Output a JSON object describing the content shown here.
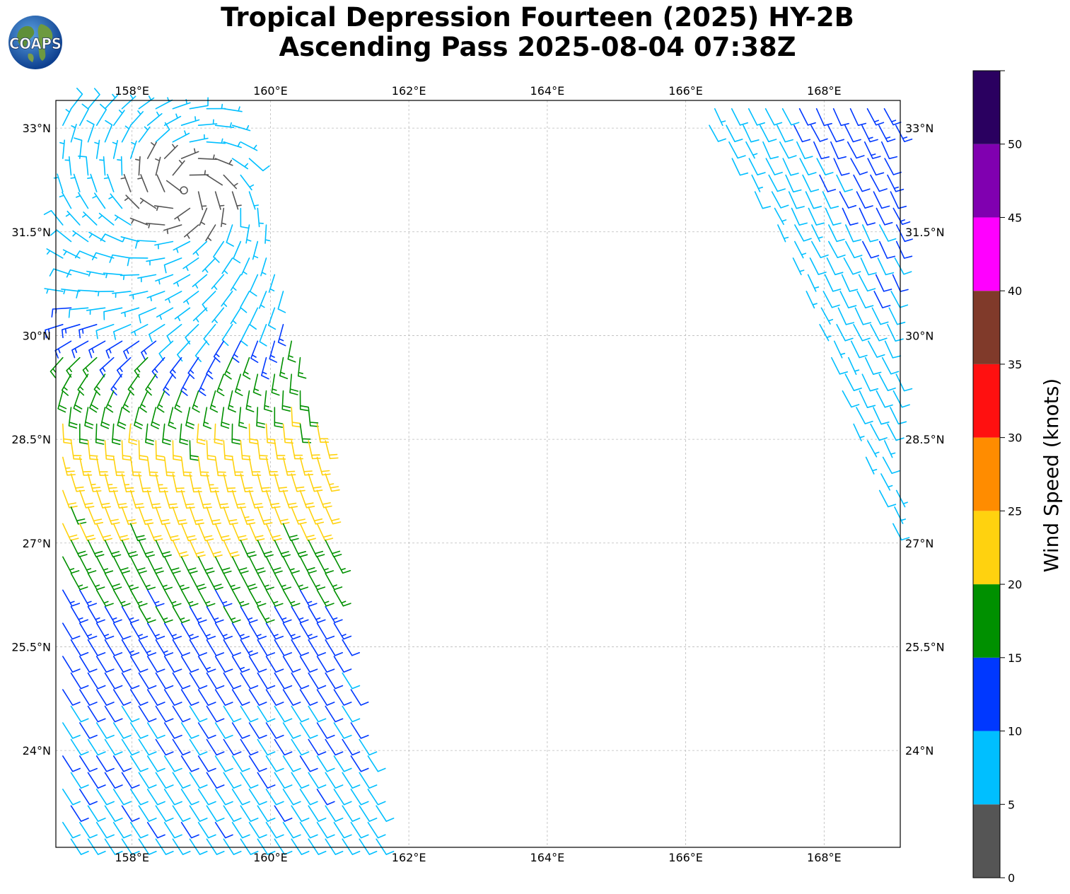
{
  "title": {
    "line1": "Tropical Depression Fourteen (2025) HY-2B",
    "line2": "Ascending Pass 2025-08-04 07:38Z"
  },
  "logo": {
    "text": "COAPS"
  },
  "map": {
    "lon_range": [
      156.9,
      169.1
    ],
    "lat_range": [
      22.6,
      33.4
    ],
    "lon_ticks": [
      {
        "value": 158,
        "label": "158°E"
      },
      {
        "value": 160,
        "label": "160°E"
      },
      {
        "value": 162,
        "label": "162°E"
      },
      {
        "value": 164,
        "label": "164°E"
      },
      {
        "value": 166,
        "label": "166°E"
      },
      {
        "value": 168,
        "label": "168°E"
      }
    ],
    "lat_ticks": [
      {
        "value": 33,
        "label": "33°N"
      },
      {
        "value": 31.5,
        "label": "31.5°N"
      },
      {
        "value": 30,
        "label": "30°N"
      },
      {
        "value": 28.5,
        "label": "28.5°N"
      },
      {
        "value": 27,
        "label": "27°N"
      },
      {
        "value": 25.5,
        "label": "25.5°N"
      },
      {
        "value": 24,
        "label": "24°N"
      }
    ],
    "grid": true,
    "storm_center": {
      "lon": 158.75,
      "lat": 32.1
    }
  },
  "colorbar": {
    "label": "Wind Speed (knots)",
    "ticks": [
      "0",
      "5",
      "10",
      "15",
      "20",
      "25",
      "30",
      "35",
      "40",
      "45",
      "50"
    ],
    "bins": [
      {
        "from": 0,
        "to": 5,
        "color": "#555555"
      },
      {
        "from": 5,
        "to": 10,
        "color": "#00bfff"
      },
      {
        "from": 10,
        "to": 15,
        "color": "#0038ff"
      },
      {
        "from": 15,
        "to": 20,
        "color": "#009000"
      },
      {
        "from": 20,
        "to": 25,
        "color": "#ffd20f"
      },
      {
        "from": 25,
        "to": 30,
        "color": "#ff8c00"
      },
      {
        "from": 30,
        "to": 35,
        "color": "#ff1010"
      },
      {
        "from": 35,
        "to": 40,
        "color": "#803a2a"
      },
      {
        "from": 40,
        "to": 45,
        "color": "#ff00ff"
      },
      {
        "from": 45,
        "to": 50,
        "color": "#8000b0"
      },
      {
        "from": 50,
        "to": 55,
        "color": "#2a0060"
      }
    ]
  },
  "swaths": [
    {
      "name": "west",
      "lat_range": [
        22.6,
        33.4
      ],
      "west_edge": [
        [
          33.4,
          156.9
        ],
        [
          22.6,
          156.9
        ]
      ],
      "east_edge": [
        [
          33.4,
          159.55
        ],
        [
          31.5,
          160.05
        ],
        [
          30.0,
          160.45
        ],
        [
          28.5,
          160.85
        ],
        [
          27.0,
          160.95
        ],
        [
          25.5,
          161.15
        ],
        [
          24.0,
          161.45
        ],
        [
          22.6,
          161.7
        ]
      ]
    },
    {
      "name": "east",
      "lat_range": [
        26.9,
        33.4
      ],
      "west_edge": [
        [
          33.1,
          166.2
        ],
        [
          31.5,
          167.3
        ],
        [
          30.0,
          167.9
        ],
        [
          28.5,
          168.4
        ],
        [
          26.9,
          169.05
        ]
      ],
      "east_edge": [
        [
          33.4,
          169.1
        ],
        [
          26.9,
          169.1
        ]
      ]
    }
  ]
}
